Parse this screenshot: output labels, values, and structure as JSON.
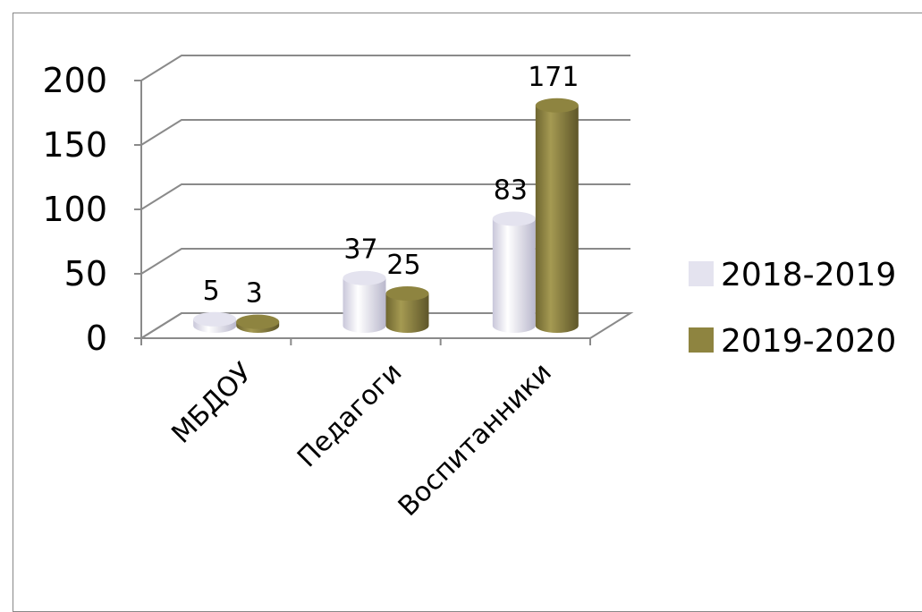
{
  "chart_data": {
    "type": "bar",
    "title": "",
    "xlabel": "",
    "ylabel": "",
    "categories": [
      "МБДОУ",
      "Педагоги",
      "Воспитанники"
    ],
    "series": [
      {
        "name": "2018-2019",
        "values": [
          5,
          37,
          83
        ],
        "color": "#e4e3ef"
      },
      {
        "name": "2019-2020",
        "values": [
          3,
          25,
          171
        ],
        "color": "#8e8440"
      }
    ],
    "ylim": [
      0,
      200
    ],
    "yticks": [
      0,
      50,
      100,
      150,
      200
    ],
    "yticks_text": [
      "0",
      "50",
      "100",
      "150",
      "200"
    ],
    "grid": true,
    "legend_position": "right",
    "style": "3d-cylinder"
  }
}
